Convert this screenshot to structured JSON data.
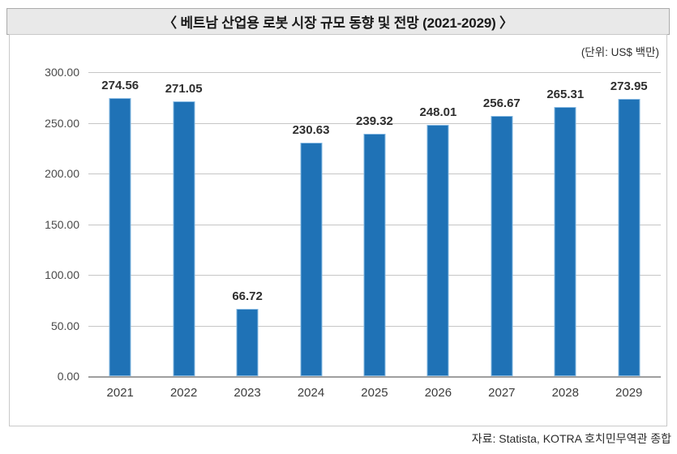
{
  "chart_data": {
    "type": "bar",
    "title": "〈 베트남 산업용 로봇 시장 규모 동향 및 전망 (2021-2029) 〉",
    "unit_label": "(단위: US$ 백만)",
    "source": "자료: Statista, KOTRA 호치민무역관 종합",
    "categories": [
      "2021",
      "2022",
      "2023",
      "2024",
      "2025",
      "2026",
      "2027",
      "2028",
      "2029"
    ],
    "values": [
      274.56,
      271.05,
      66.72,
      230.63,
      239.32,
      248.01,
      256.67,
      265.31,
      273.95
    ],
    "value_labels": [
      "274.56",
      "271.05",
      "66.72",
      "230.63",
      "239.32",
      "248.01",
      "256.67",
      "265.31",
      "273.95"
    ],
    "xlabel": "",
    "ylabel": "",
    "ylim": [
      0,
      300
    ],
    "y_ticks": [
      300,
      250,
      200,
      150,
      100,
      50,
      0
    ],
    "y_tick_labels": [
      "300.00",
      "250.00",
      "200.00",
      "150.00",
      "100.00",
      "50.00",
      "0.00"
    ],
    "grid": "horizontal",
    "legend": "none",
    "colors": {
      "bar": "#1f72b6",
      "bar_border": "#86b9e2",
      "gridline": "#c6c6c6",
      "axis_line": "#9e9e9e",
      "title_bar_bg": "#e9e9e9",
      "title_bar_border": "#ababab",
      "panel_border": "#c9c9c9",
      "text": "#333333"
    }
  }
}
